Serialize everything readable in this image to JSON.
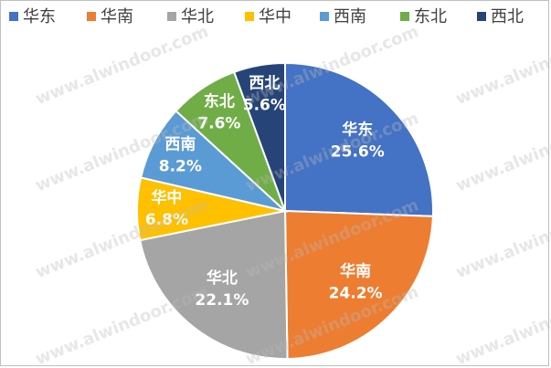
{
  "chart_data": {
    "type": "pie",
    "categories": [
      "华东",
      "华南",
      "华北",
      "华中",
      "西南",
      "东北",
      "西北"
    ],
    "values": [
      25.6,
      24.2,
      22.1,
      6.8,
      8.2,
      7.6,
      5.6
    ],
    "value_labels": [
      "25.6%",
      "24.2%",
      "22.1%",
      "6.8%",
      "8.2%",
      "7.6%",
      "5.6%"
    ],
    "colors": [
      "#4472c4",
      "#ed7d31",
      "#a5a5a5",
      "#ffc000",
      "#5b9bd5",
      "#70ad47",
      "#264478"
    ],
    "legend": "top",
    "watermark": "www.alwindoor.com"
  }
}
